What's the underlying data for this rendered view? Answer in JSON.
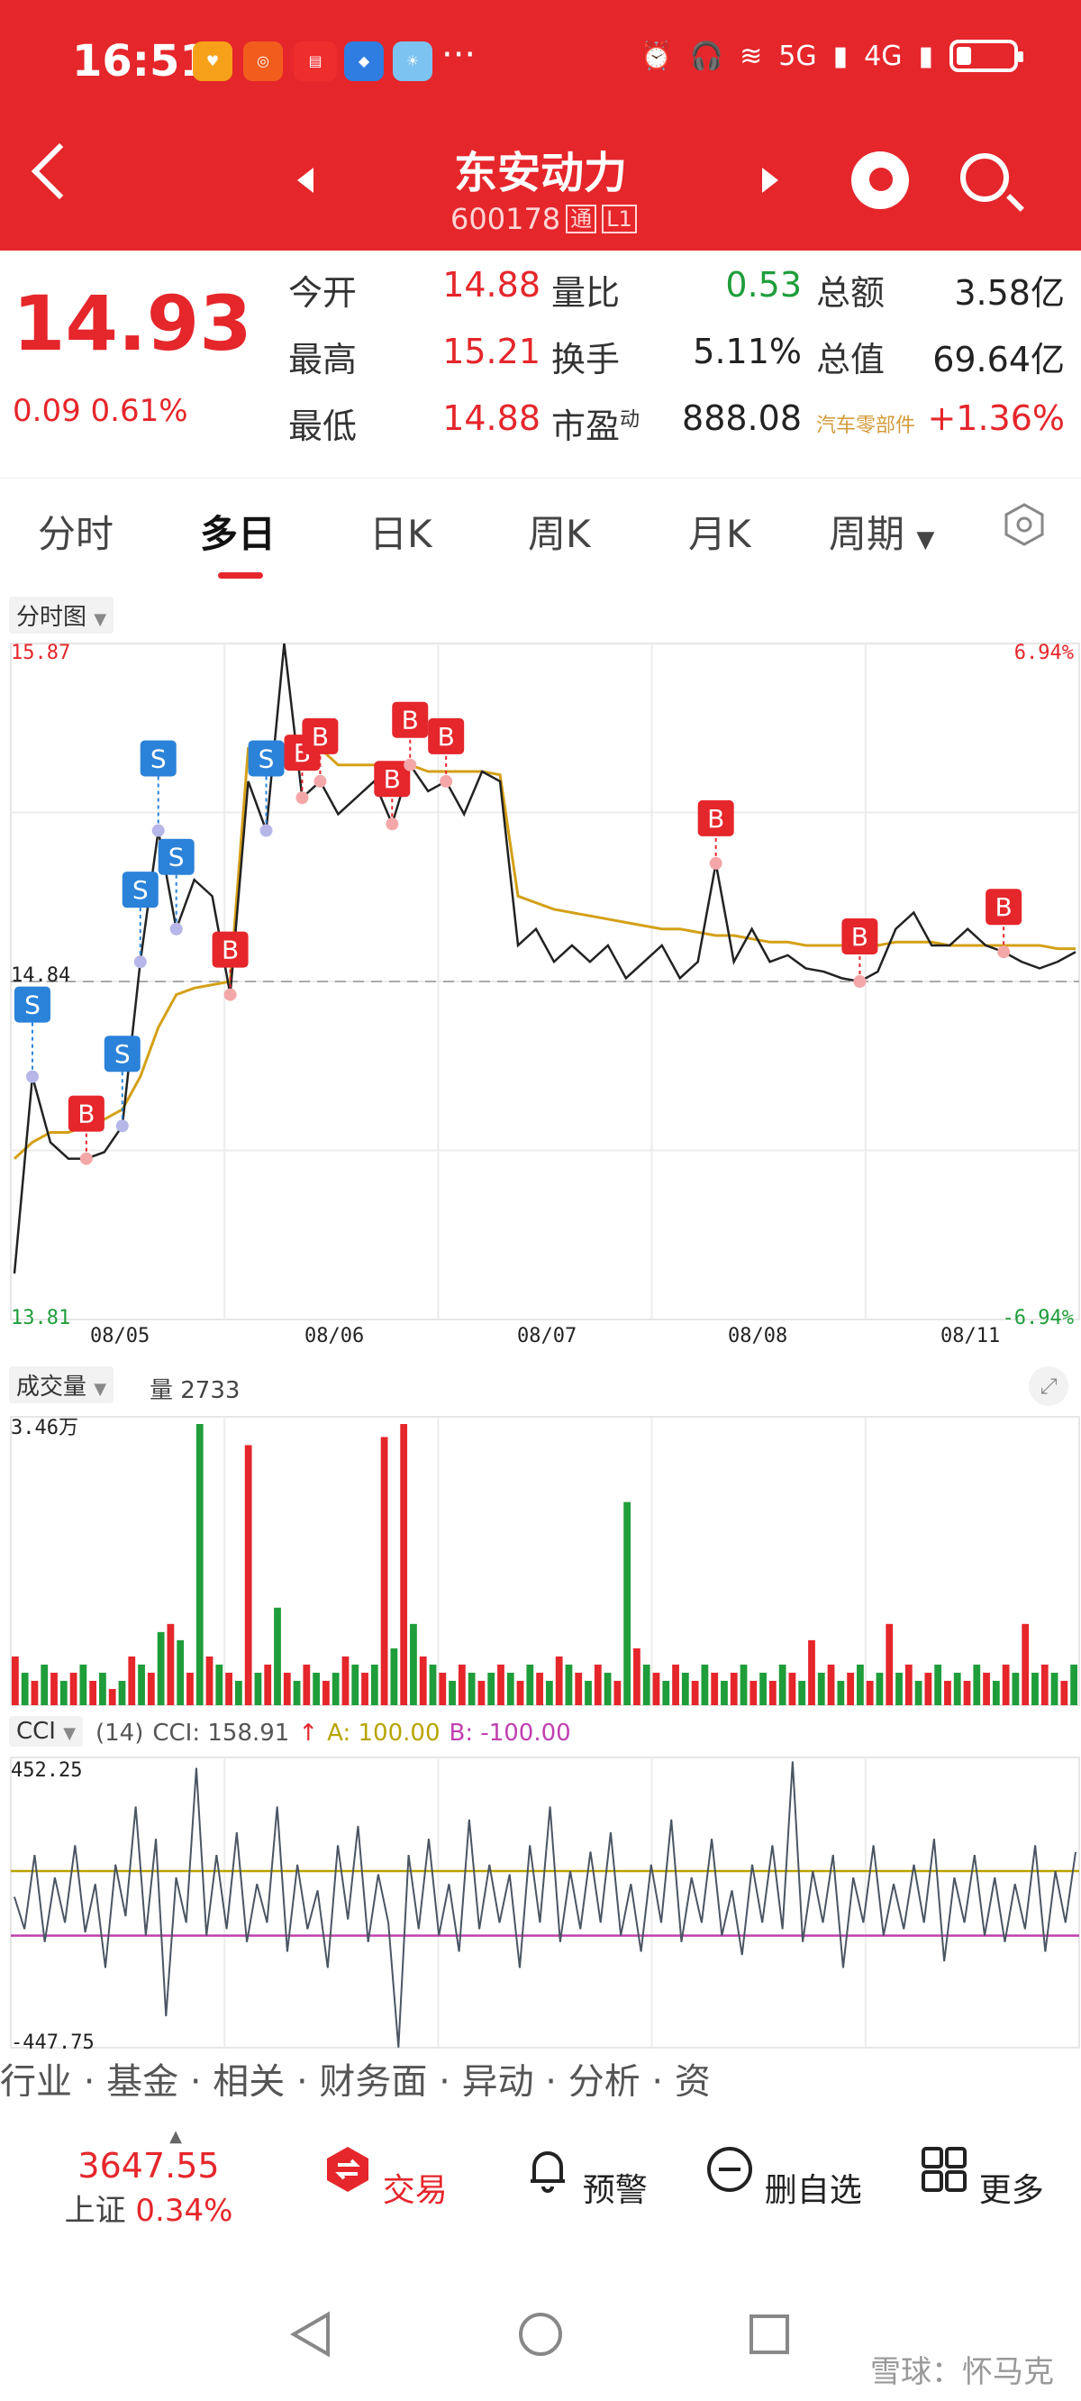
{
  "status_bar": {
    "time": "16:51",
    "network_5g": "5G",
    "network_4g": "4G"
  },
  "header": {
    "stock_name": "东安动力",
    "stock_code": "600178",
    "tag_tong": "通",
    "tag_l1": "L1"
  },
  "quote": {
    "price": "14.93",
    "change": "0.09",
    "change_pct": "0.61%",
    "fields": [
      {
        "label": "今开",
        "value": "14.88",
        "color": "#e5262b"
      },
      {
        "label": "量比",
        "value": "0.53",
        "color": "#1f9d3a"
      },
      {
        "label": "总额",
        "value": "3.58亿",
        "color": "#222222"
      },
      {
        "label": "最高",
        "value": "15.21",
        "color": "#e5262b"
      },
      {
        "label": "换手",
        "value": "5.11%",
        "color": "#222222"
      },
      {
        "label": "总值",
        "value": "69.64亿",
        "color": "#222222"
      },
      {
        "label": "最低",
        "value": "14.88",
        "color": "#e5262b"
      },
      {
        "label": "市盈",
        "sup": "动",
        "value": "888.08",
        "color": "#222222"
      },
      {
        "label": "汽车零部件",
        "value": "+1.36%",
        "color": "#e5262b"
      }
    ]
  },
  "tabs": [
    "分时",
    "多日",
    "日K",
    "周K",
    "月K",
    "周期"
  ],
  "active_tab": "多日",
  "chart_data": [
    {
      "type": "line",
      "panel_label": "分时图",
      "y_max": "15.87",
      "y_min": "13.81",
      "y_ref": "14.84",
      "pct_max": "6.94%",
      "pct_min": "-6.94%",
      "x_labels": [
        "08/05",
        "08/06",
        "08/07",
        "08/08",
        "08/11"
      ],
      "price_points": [
        13.95,
        14.55,
        14.35,
        14.3,
        14.3,
        14.32,
        14.4,
        14.9,
        15.3,
        15.0,
        15.15,
        15.1,
        14.8,
        15.45,
        15.3,
        15.87,
        15.4,
        15.45,
        15.35,
        15.4,
        15.45,
        15.32,
        15.5,
        15.42,
        15.45,
        15.35,
        15.48,
        15.45,
        14.95,
        15.0,
        14.9,
        14.95,
        14.9,
        14.95,
        14.85,
        14.9,
        14.95,
        14.85,
        14.9,
        15.2,
        14.9,
        15.0,
        14.9,
        14.92,
        14.88,
        14.87,
        14.85,
        14.84,
        14.87,
        15.0,
        15.05,
        14.95,
        14.95,
        15.0,
        14.95,
        14.93,
        14.9,
        14.88,
        14.9,
        14.93
      ],
      "avg_points": [
        14.3,
        14.35,
        14.38,
        14.38,
        14.4,
        14.42,
        14.45,
        14.55,
        14.7,
        14.8,
        14.82,
        14.83,
        14.84,
        15.55,
        15.55,
        15.55,
        15.55,
        15.55,
        15.5,
        15.5,
        15.5,
        15.5,
        15.5,
        15.48,
        15.48,
        15.48,
        15.48,
        15.47,
        15.1,
        15.08,
        15.06,
        15.05,
        15.04,
        15.03,
        15.02,
        15.01,
        15.0,
        15.0,
        14.99,
        14.98,
        14.98,
        14.97,
        14.96,
        14.96,
        14.95,
        14.95,
        14.95,
        14.95,
        14.95,
        14.96,
        14.96,
        14.96,
        14.95,
        14.95,
        14.95,
        14.95,
        14.95,
        14.95,
        14.94,
        14.94
      ],
      "trade_markers": [
        {
          "label": "S",
          "index": 1,
          "value": 14.55
        },
        {
          "label": "B",
          "index": 4,
          "value": 14.3
        },
        {
          "label": "S",
          "index": 6,
          "value": 14.4
        },
        {
          "label": "S",
          "index": 7,
          "value": 14.9
        },
        {
          "label": "S",
          "index": 8,
          "value": 15.3
        },
        {
          "label": "S",
          "index": 9,
          "value": 15.0
        },
        {
          "label": "B",
          "index": 12,
          "value": 14.8
        },
        {
          "label": "S",
          "index": 14,
          "value": 15.3
        },
        {
          "label": "B",
          "index": 16,
          "value": 15.4
        },
        {
          "label": "B",
          "index": 17,
          "value": 15.45
        },
        {
          "label": "B",
          "index": 21,
          "value": 15.32
        },
        {
          "label": "B",
          "index": 22,
          "value": 15.5
        },
        {
          "label": "B",
          "index": 24,
          "value": 15.45
        },
        {
          "label": "B",
          "index": 39,
          "value": 15.2
        },
        {
          "label": "B",
          "index": 47,
          "value": 14.84
        },
        {
          "label": "B",
          "index": 55,
          "value": 14.93
        }
      ]
    },
    {
      "type": "bar",
      "panel_label": "成交量",
      "volume_label": "量 2733",
      "y_max_label": "3.46万",
      "values": [
        0.6,
        0.4,
        0.3,
        0.5,
        0.4,
        0.3,
        0.4,
        0.5,
        0.3,
        0.4,
        0.2,
        0.3,
        0.6,
        0.5,
        0.4,
        0.9,
        1.0,
        0.8,
        0.4,
        3.46,
        0.6,
        0.5,
        0.4,
        0.3,
        3.2,
        0.4,
        0.5,
        1.2,
        0.4,
        0.3,
        0.5,
        0.4,
        0.3,
        0.4,
        0.6,
        0.5,
        0.4,
        0.5,
        3.3,
        0.7,
        3.46,
        1.0,
        0.6,
        0.5,
        0.4,
        0.3,
        0.5,
        0.4,
        0.3,
        0.4,
        0.5,
        0.4,
        0.3,
        0.5,
        0.4,
        0.3,
        0.6,
        0.5,
        0.4,
        0.3,
        0.5,
        0.4,
        0.3,
        2.5,
        0.7,
        0.5,
        0.4,
        0.3,
        0.5,
        0.4,
        0.3,
        0.5,
        0.4,
        0.3,
        0.4,
        0.5,
        0.3,
        0.4,
        0.3,
        0.5,
        0.4,
        0.3,
        0.8,
        0.4,
        0.5,
        0.3,
        0.4,
        0.5,
        0.3,
        0.4,
        1.0,
        0.4,
        0.5,
        0.3,
        0.4,
        0.5,
        0.3,
        0.4,
        0.3,
        0.5,
        0.4,
        0.3,
        0.5,
        0.4,
        1.0,
        0.4,
        0.5,
        0.4,
        0.3,
        0.5
      ],
      "colors_up": "#e5262b",
      "colors_down": "#1f9d3a"
    },
    {
      "type": "line",
      "panel_label": "CCI",
      "params": "(14)",
      "cci_label": "CCI: 158.91",
      "a_label": "A: 100.00",
      "b_label": "B: -100.00",
      "y_max": "452.25",
      "y_min": "-447.75",
      "cci_points": [
        20,
        -80,
        150,
        -120,
        80,
        -60,
        180,
        -90,
        60,
        -200,
        120,
        -40,
        300,
        -100,
        200,
        -350,
        80,
        -60,
        420,
        -100,
        150,
        -80,
        220,
        -120,
        60,
        -60,
        300,
        -150,
        120,
        -80,
        40,
        -200,
        180,
        -50,
        240,
        -120,
        90,
        -60,
        -447,
        150,
        -80,
        200,
        -100,
        60,
        -150,
        260,
        -80,
        120,
        -60,
        90,
        -200,
        180,
        -60,
        300,
        -120,
        100,
        -80,
        160,
        -60,
        220,
        -100,
        60,
        -150,
        120,
        -60,
        260,
        -120,
        80,
        -60,
        200,
        -100,
        40,
        -160,
        120,
        -60,
        180,
        -80,
        440,
        -120,
        100,
        -60,
        150,
        -200,
        80,
        -60,
        180,
        -100,
        60,
        -80,
        120,
        -60,
        200,
        -180,
        80,
        -60,
        150,
        -100,
        80,
        -120,
        60,
        -80,
        180,
        -150,
        100,
        -60,
        158.91
      ],
      "line_a": 100,
      "line_b": -100
    }
  ],
  "bottom_strip": "行业 · 基金 · 相关 · 财务面 · 异动 · 分析 · 资",
  "index": {
    "value": "3647.55",
    "name": "上证",
    "change_pct": "0.34%"
  },
  "nav": [
    "交易",
    "预警",
    "删自选",
    "更多"
  ],
  "watermark": "雪球：怀马克"
}
